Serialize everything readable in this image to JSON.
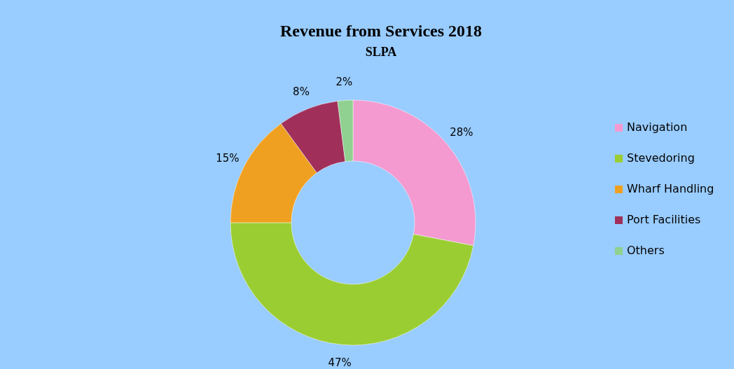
{
  "chart_data": {
    "type": "donut",
    "title": "Revenue from Services 2018",
    "subtitle": "SLPA",
    "categories": [
      "Navigation",
      "Stevedoring",
      "Wharf Handling",
      "Port Facilities",
      "Others"
    ],
    "values": [
      28,
      47,
      15,
      8,
      2
    ],
    "colors": [
      "#f49ad0",
      "#9acd32",
      "#f0a020",
      "#a0305a",
      "#90d090"
    ],
    "value_labels": [
      "28%",
      "47%",
      "15%",
      "8%",
      "2%"
    ],
    "legend": "right"
  }
}
